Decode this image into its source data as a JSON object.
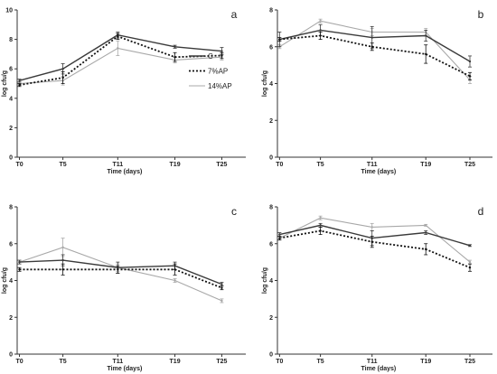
{
  "chart_data": [
    {
      "panel": "a",
      "type": "line",
      "categories": [
        "T0",
        "T5",
        "T11",
        "T19",
        "T25"
      ],
      "xlabel": "Time (days)",
      "ylabel": "log cfu/g",
      "ylim": [
        0,
        10
      ],
      "yticks": [
        0,
        2,
        4,
        6,
        8,
        10
      ],
      "legend": {
        "position": "right",
        "entries": [
          "C",
          "7%AP",
          "14%AP"
        ]
      },
      "series": [
        {
          "name": "C",
          "values": [
            5.2,
            6.0,
            8.3,
            7.5,
            7.2
          ],
          "err": [
            0.1,
            0.35,
            0.2,
            0.1,
            0.25
          ]
        },
        {
          "name": "7%AP",
          "values": [
            4.9,
            5.4,
            8.2,
            6.8,
            6.9
          ],
          "err": [
            0.1,
            0.4,
            0.2,
            0.3,
            0.2
          ]
        },
        {
          "name": "14%AP",
          "values": [
            5.0,
            5.2,
            7.4,
            6.6,
            6.8
          ],
          "err": [
            0.1,
            0.3,
            0.5,
            0.2,
            0.2
          ]
        }
      ]
    },
    {
      "panel": "b",
      "type": "line",
      "categories": [
        "T0",
        "T5",
        "T11",
        "T19",
        "T25"
      ],
      "xlabel": "Time (days)",
      "ylabel": "log cfu/g",
      "ylim": [
        0,
        8
      ],
      "yticks": [
        0,
        2,
        4,
        6,
        8
      ],
      "series": [
        {
          "name": "C",
          "values": [
            6.4,
            6.9,
            6.5,
            6.6,
            5.2
          ],
          "err": [
            0.4,
            0.3,
            0.6,
            0.3,
            0.3
          ]
        },
        {
          "name": "7%AP",
          "values": [
            6.4,
            6.6,
            6.0,
            5.6,
            4.4
          ],
          "err": [
            0.1,
            0.2,
            0.2,
            0.5,
            0.2
          ]
        },
        {
          "name": "14%AP",
          "values": [
            6.0,
            7.4,
            6.8,
            6.8,
            4.2
          ],
          "err": [
            0.1,
            0.1,
            0.2,
            0.2,
            0.2
          ]
        }
      ]
    },
    {
      "panel": "c",
      "type": "line",
      "categories": [
        "T0",
        "T5",
        "T11",
        "T19",
        "T25"
      ],
      "xlabel": "Time (days)",
      "ylabel": "log cfu/g",
      "ylim": [
        0,
        8
      ],
      "yticks": [
        0,
        2,
        4,
        6,
        8
      ],
      "series": [
        {
          "name": "C",
          "values": [
            5.0,
            5.1,
            4.7,
            4.8,
            3.8
          ],
          "err": [
            0.1,
            0.3,
            0.3,
            0.2,
            0.1
          ]
        },
        {
          "name": "7%AP",
          "values": [
            4.6,
            4.6,
            4.6,
            4.6,
            3.6
          ],
          "err": [
            0.1,
            0.3,
            0.2,
            0.3,
            0.1
          ]
        },
        {
          "name": "14%AP",
          "values": [
            5.0,
            5.8,
            4.7,
            4.0,
            2.9
          ],
          "err": [
            0.1,
            0.5,
            0.2,
            0.1,
            0.1
          ]
        }
      ]
    },
    {
      "panel": "d",
      "type": "line",
      "categories": [
        "T0",
        "T5",
        "T11",
        "T19",
        "T25"
      ],
      "xlabel": "Time (days)",
      "ylabel": "log cfu/g",
      "ylim": [
        0,
        8
      ],
      "yticks": [
        0,
        2,
        4,
        6,
        8
      ],
      "series": [
        {
          "name": "C",
          "values": [
            6.5,
            7.0,
            6.3,
            6.6,
            5.9
          ],
          "err": [
            0.1,
            0.1,
            0.4,
            0.1,
            0.05
          ]
        },
        {
          "name": "7%AP",
          "values": [
            6.3,
            6.7,
            6.1,
            5.7,
            4.7
          ],
          "err": [
            0.1,
            0.2,
            0.3,
            0.3,
            0.2
          ]
        },
        {
          "name": "14%AP",
          "values": [
            6.3,
            7.4,
            6.9,
            7.0,
            5.0
          ],
          "err": [
            0.1,
            0.1,
            0.2,
            0.05,
            0.1
          ]
        }
      ]
    }
  ]
}
